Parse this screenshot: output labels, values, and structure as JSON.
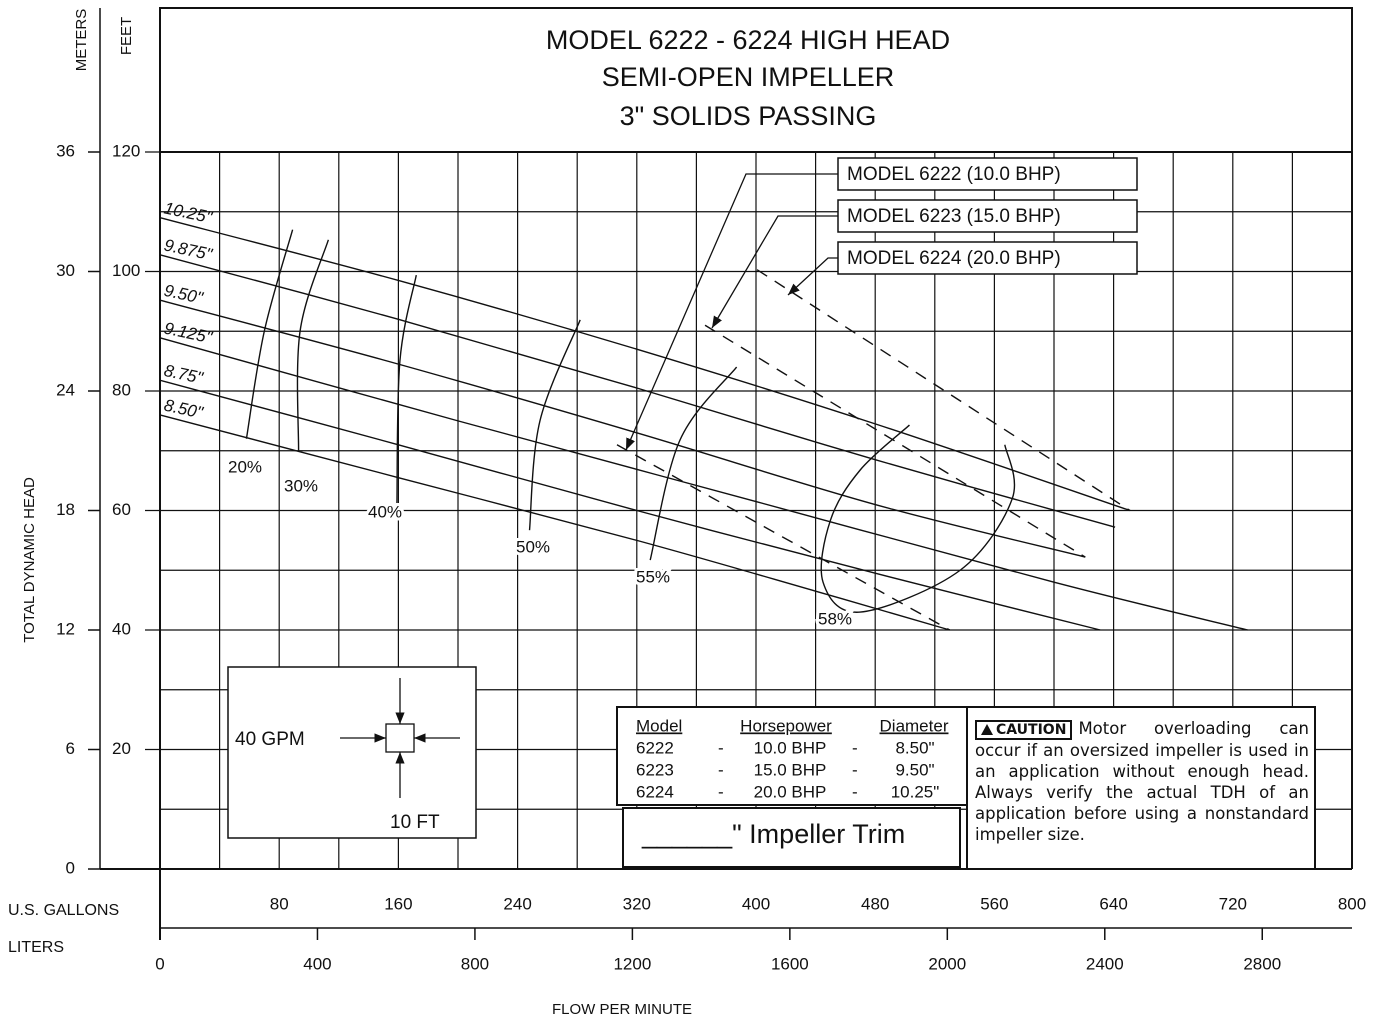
{
  "chart_data": {
    "type": "line",
    "title": [
      "MODEL 6222 - 6224 HIGH HEAD",
      "SEMI-OPEN IMPELLER",
      "3\" SOLIDS PASSING"
    ],
    "y_label": "FEET",
    "y2_label": "METERS",
    "y_title": "TOTAL DYNAMIC HEAD",
    "x_label": "U.S. GALLONS",
    "x2_label": "LITERS",
    "x_title": "FLOW PER MINUTE",
    "xlim": [
      0,
      800
    ],
    "xticks": [
      80,
      160,
      240,
      320,
      400,
      480,
      560,
      640,
      720,
      800
    ],
    "x2lim": [
      0,
      3028
    ],
    "x2ticks": [
      0,
      400,
      800,
      1200,
      1600,
      2000,
      2400,
      2800
    ],
    "ylim": [
      0,
      120
    ],
    "yticks": [
      20,
      40,
      60,
      80,
      100,
      120
    ],
    "y2lim": [
      0,
      36
    ],
    "y2ticks": [
      0,
      6,
      12,
      18,
      24,
      30,
      36
    ],
    "grid": true,
    "series": [
      {
        "name": "10.25\"",
        "color": "#111111",
        "x": [
          0,
          160,
          320,
          480,
          651
        ],
        "values": [
          109,
          98.5,
          87,
          74.5,
          60
        ]
      },
      {
        "name": "9.875\"",
        "color": "#111111",
        "x": [
          0,
          160,
          320,
          480,
          641
        ],
        "values": [
          102.8,
          92,
          80.5,
          68.5,
          57.2
        ]
      },
      {
        "name": "9.50\"",
        "color": "#111111",
        "x": [
          0,
          160,
          320,
          480,
          621
        ],
        "values": [
          95.2,
          84.5,
          73,
          61,
          52.2
        ]
      },
      {
        "name": "9.125\"",
        "color": "#111111",
        "x": [
          0,
          200,
          400,
          600,
          730
        ],
        "values": [
          88.9,
          75,
          61.5,
          48,
          40
        ]
      },
      {
        "name": "8.75\"",
        "color": "#111111",
        "x": [
          0,
          160,
          320,
          480,
          631
        ],
        "values": [
          81.8,
          71,
          60,
          49.5,
          40
        ]
      },
      {
        "name": "8.50\"",
        "color": "#111111",
        "x": [
          0,
          160,
          320,
          440,
          530
        ],
        "values": [
          76,
          65.5,
          55,
          46.5,
          40
        ]
      }
    ],
    "efficiency": [
      {
        "name": "20%",
        "x": [
          89,
          70,
          58
        ],
        "values": [
          107,
          90,
          72
        ]
      },
      {
        "name": "30%",
        "x": [
          113,
          94,
          93
        ],
        "values": [
          105.3,
          90,
          70
        ]
      },
      {
        "name": "40%",
        "x": [
          172,
          161,
          159
        ],
        "values": [
          99.4,
          85,
          61
        ]
      },
      {
        "name": "50%",
        "x": [
          282,
          255,
          248
        ],
        "values": [
          91.9,
          75,
          56.7
        ]
      },
      {
        "name": "55%",
        "x": [
          387,
          349,
          329
        ],
        "values": [
          84,
          71.8,
          51.7
        ]
      },
      {
        "name": "58%",
        "x": [
          503,
          470,
          450,
          445,
          470,
          537,
          572,
          567
        ],
        "values": [
          74.3,
          66.8,
          58.4,
          48,
          43,
          50,
          62,
          71
        ]
      }
    ],
    "hp_limits": [
      {
        "name": "MODEL 6222 (10.0 BHP)",
        "x": [
          306.7,
          530
        ],
        "values": [
          71,
          40
        ]
      },
      {
        "name": "MODEL 6223 (15.0 BHP)",
        "x": [
          365.8,
          621
        ],
        "values": [
          91,
          52.2
        ]
      },
      {
        "name": "MODEL 6224 (20.0 BHP)",
        "x": [
          400.7,
          651
        ],
        "values": [
          100.3,
          60
        ]
      }
    ],
    "inset": {
      "flow": "40 GPM",
      "head": "10 FT"
    },
    "table": {
      "header": [
        "Model",
        "Horsepower",
        "Diameter"
      ],
      "rows": [
        [
          "6222",
          "-",
          "10.0 BHP",
          "-",
          "8.50\""
        ],
        [
          "6223",
          "-",
          "15.0 BHP",
          "-",
          "9.50\""
        ],
        [
          "6224",
          "-",
          "20.0 BHP",
          "-",
          "10.25\""
        ]
      ]
    },
    "trim": "______\" Impeller Trim",
    "caution": {
      "label": "CAUTION",
      "text": "Motor overloading can occur if an oversized impeller is used in an application without enough head. Always verify the actual TDH of an application before using a nonstandard impeller size."
    }
  }
}
